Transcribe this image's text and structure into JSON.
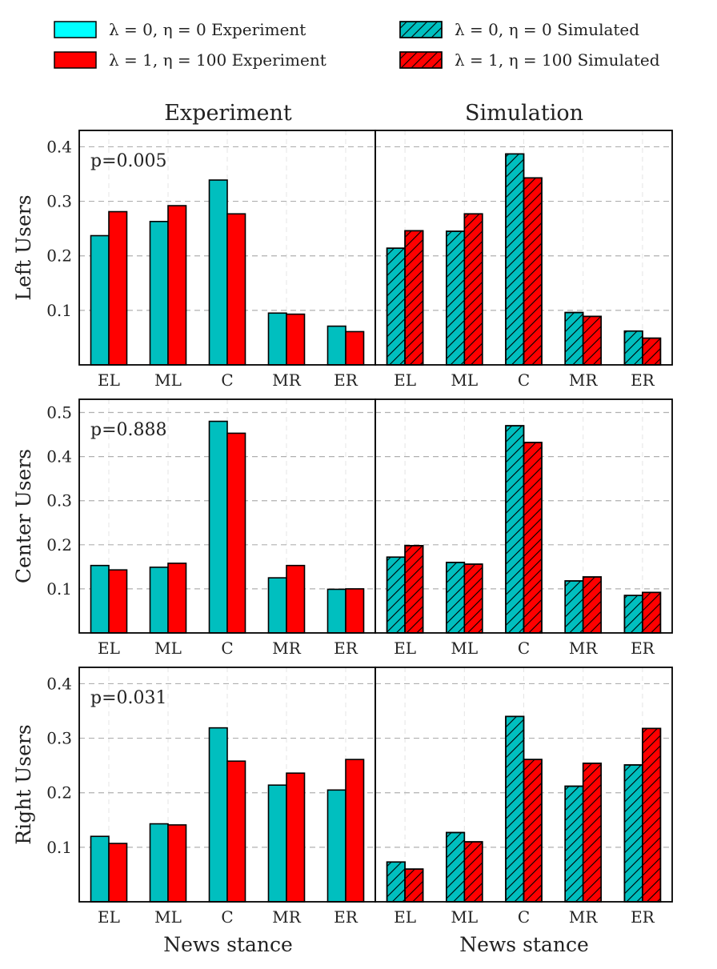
{
  "colors": {
    "cyan_bar": "#00BFBF",
    "cyan_legend": "#00FFFF",
    "red_bar": "#FF0000",
    "grid": "#B0B0B0",
    "edge": "#000000"
  },
  "legend": {
    "items": [
      {
        "label": "λ = 0, η = 0 Experiment",
        "color": "cyan_legend",
        "hatch": false
      },
      {
        "label": "λ = 1, η = 100 Experiment",
        "color": "red_bar",
        "hatch": false
      },
      {
        "label": "λ = 0, η = 0 Simulated",
        "color": "cyan_bar",
        "hatch": true
      },
      {
        "label": "λ = 1, η = 100 Simulated",
        "color": "red_bar",
        "hatch": true
      }
    ]
  },
  "columns": {
    "left_title": "Experiment",
    "right_title": "Simulation",
    "xlabel": "News stance"
  },
  "chart_data": {
    "type": "bar",
    "categories": [
      "EL",
      "ML",
      "C",
      "MR",
      "ER"
    ],
    "rows": [
      {
        "ylabel": "Left Users",
        "p_value": "p=0.005",
        "yticks": [
          "0.1",
          "0.2",
          "0.3",
          "0.4"
        ],
        "ylim": [
          0,
          0.43
        ],
        "experiment": {
          "series": [
            {
              "name": "λ = 0, η = 0 Experiment",
              "values": [
                0.237,
                0.263,
                0.339,
                0.095,
                0.071
              ]
            },
            {
              "name": "λ = 1, η = 100 Experiment",
              "values": [
                0.281,
                0.292,
                0.277,
                0.093,
                0.061
              ]
            }
          ]
        },
        "simulation": {
          "series": [
            {
              "name": "λ = 0, η = 0 Simulated",
              "values": [
                0.214,
                0.245,
                0.387,
                0.096,
                0.062
              ]
            },
            {
              "name": "λ = 1, η = 100 Simulated",
              "values": [
                0.246,
                0.277,
                0.343,
                0.089,
                0.049
              ]
            }
          ]
        }
      },
      {
        "ylabel": "Center Users",
        "p_value": "p=0.888",
        "yticks": [
          "0.1",
          "0.2",
          "0.3",
          "0.4",
          "0.5"
        ],
        "ylim": [
          0,
          0.53
        ],
        "experiment": {
          "series": [
            {
              "name": "λ = 0, η = 0 Experiment",
              "values": [
                0.153,
                0.149,
                0.48,
                0.125,
                0.099
              ]
            },
            {
              "name": "λ = 1, η = 100 Experiment",
              "values": [
                0.143,
                0.158,
                0.453,
                0.153,
                0.1
              ]
            }
          ]
        },
        "simulation": {
          "series": [
            {
              "name": "λ = 0, η = 0 Simulated",
              "values": [
                0.172,
                0.16,
                0.47,
                0.118,
                0.085
              ]
            },
            {
              "name": "λ = 1, η = 100 Simulated",
              "values": [
                0.198,
                0.156,
                0.432,
                0.127,
                0.092
              ]
            }
          ]
        }
      },
      {
        "ylabel": "Right Users",
        "p_value": "p=0.031",
        "yticks": [
          "0.1",
          "0.2",
          "0.3",
          "0.4"
        ],
        "ylim": [
          0,
          0.43
        ],
        "experiment": {
          "series": [
            {
              "name": "λ = 0, η = 0 Experiment",
              "values": [
                0.12,
                0.143,
                0.319,
                0.214,
                0.205
              ]
            },
            {
              "name": "λ = 1, η = 100 Experiment",
              "values": [
                0.107,
                0.141,
                0.258,
                0.236,
                0.261
              ]
            }
          ]
        },
        "simulation": {
          "series": [
            {
              "name": "λ = 0, η = 0 Simulated",
              "values": [
                0.073,
                0.127,
                0.34,
                0.212,
                0.251
              ]
            },
            {
              "name": "λ = 1, η = 100 Simulated",
              "values": [
                0.06,
                0.11,
                0.261,
                0.254,
                0.318
              ]
            }
          ]
        }
      }
    ]
  }
}
